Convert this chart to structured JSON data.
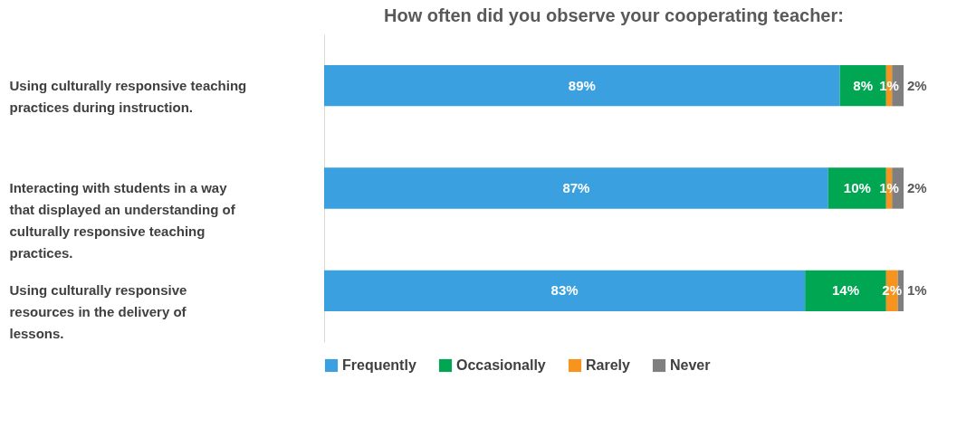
{
  "chart_data": {
    "type": "bar",
    "orientation": "horizontal",
    "stacked": true,
    "title": "How often did you observe your cooperating teacher:",
    "categories": [
      "Using culturally responsive teaching practices during instruction.",
      "Interacting with students in a way that displayed an understanding of culturally responsive teaching practices.",
      "Using culturally responsive resources in the delivery of lessons."
    ],
    "series": [
      {
        "name": "Frequently",
        "color": "#3aa0e0",
        "values": [
          89,
          87,
          83
        ],
        "value_labels": [
          "89%",
          "87%",
          "83%"
        ]
      },
      {
        "name": "Occasionally",
        "color": "#00a651",
        "values": [
          8,
          10,
          14
        ],
        "value_labels": [
          "8%",
          "10%",
          "14%"
        ]
      },
      {
        "name": "Rarely",
        "color": "#f7941d",
        "values": [
          1,
          1,
          2
        ],
        "value_labels": [
          "1%",
          "1%",
          "2%"
        ]
      },
      {
        "name": "Never",
        "color": "#7f7f7f",
        "values": [
          2,
          2,
          1
        ],
        "value_labels": [
          "2%",
          "2%",
          "1%"
        ]
      }
    ],
    "legend": "bottom",
    "grid": false
  }
}
